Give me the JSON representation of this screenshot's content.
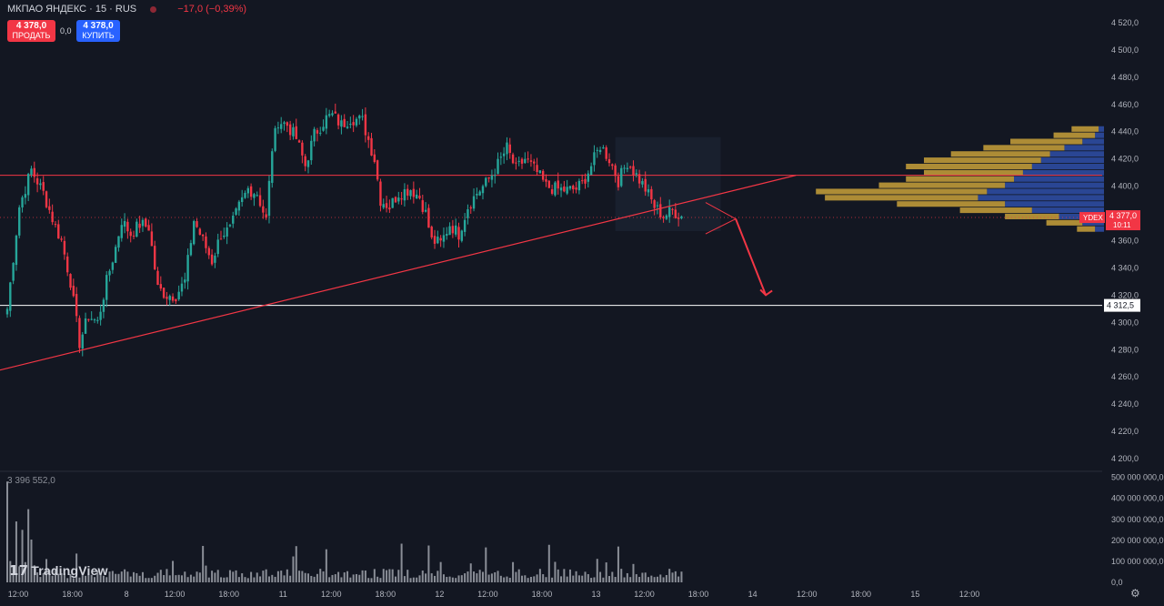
{
  "header": {
    "symbol": "МКПАО ЯНДЕКС · 15 · RUS",
    "change": "−17,0 (−0,39%)"
  },
  "trade": {
    "sell_price": "4 378,0",
    "sell_label": "ПРОДАТЬ",
    "spread": "0,0",
    "buy_price": "4 378,0",
    "buy_label": "КУПИТЬ"
  },
  "volume_label": "3 396 552,0",
  "logo_text": "TradingView",
  "colors": {
    "up": "#26a69a",
    "down": "#f23645",
    "bg": "#131722",
    "ticker": "#f23645",
    "profile_up": "#2f4fa8",
    "profile_down": "#c9a13a"
  },
  "icons": {
    "settings": "gear-icon",
    "logo": "tradingview-logo"
  },
  "chart_data": {
    "type": "candlestick",
    "price_axis": {
      "range": [
        4192,
        4530
      ],
      "ticks": [
        4200,
        4220,
        4240,
        4260,
        4280,
        4300,
        4320,
        4340,
        4360,
        4380,
        4400,
        4420,
        4440,
        4460,
        4480,
        4500,
        4520
      ],
      "tick_labels": [
        "4 200,0",
        "4 220,0",
        "4 240,0",
        "4 260,0",
        "4 280,0",
        "4 300,0",
        "4 320,0",
        "4 340,0",
        "4 360,0",
        "4 380,0",
        "4 400,0",
        "4 420,0",
        "4 440,0",
        "4 460,0",
        "4 480,0",
        "4 500,0",
        "4 520,0"
      ]
    },
    "time_axis": {
      "labels": [
        "12:00",
        "18:00",
        "8",
        "12:00",
        "18:00",
        "11",
        "12:00",
        "18:00",
        "12",
        "12:00",
        "18:00",
        "13",
        "12:00",
        "18:00",
        "14",
        "12:00",
        "18:00",
        "15",
        "12:00"
      ],
      "index": [
        0,
        18,
        36,
        52,
        70,
        88,
        104,
        122,
        140,
        156,
        174,
        192,
        208,
        226,
        244,
        262,
        280,
        298,
        316
      ]
    },
    "close_path": [
      [
        0,
        4310
      ],
      [
        4,
        4385
      ],
      [
        8,
        4412
      ],
      [
        12,
        4395
      ],
      [
        16,
        4370
      ],
      [
        18,
        4360
      ],
      [
        21,
        4330
      ],
      [
        24,
        4285
      ],
      [
        27,
        4305
      ],
      [
        30,
        4300
      ],
      [
        33,
        4330
      ],
      [
        36,
        4355
      ],
      [
        38,
        4375
      ],
      [
        41,
        4365
      ],
      [
        44,
        4372
      ],
      [
        47,
        4370
      ],
      [
        50,
        4325
      ],
      [
        53,
        4320
      ],
      [
        56,
        4320
      ],
      [
        59,
        4330
      ],
      [
        62,
        4375
      ],
      [
        65,
        4360
      ],
      [
        68,
        4345
      ],
      [
        71,
        4365
      ],
      [
        74,
        4368
      ],
      [
        77,
        4385
      ],
      [
        80,
        4398
      ],
      [
        83,
        4395
      ],
      [
        86,
        4375
      ],
      [
        88,
        4428
      ],
      [
        90,
        4448
      ],
      [
        93,
        4445
      ],
      [
        96,
        4435
      ],
      [
        99,
        4415
      ],
      [
        102,
        4438
      ],
      [
        106,
        4450
      ],
      [
        108,
        4452
      ],
      [
        111,
        4445
      ],
      [
        114,
        4450
      ],
      [
        118,
        4448
      ],
      [
        122,
        4420
      ],
      [
        124,
        4390
      ],
      [
        127,
        4385
      ],
      [
        130,
        4395
      ],
      [
        134,
        4398
      ],
      [
        137,
        4392
      ],
      [
        139,
        4380
      ],
      [
        141,
        4360
      ],
      [
        144,
        4358
      ],
      [
        147,
        4372
      ],
      [
        150,
        4365
      ],
      [
        153,
        4385
      ],
      [
        156,
        4395
      ],
      [
        159,
        4402
      ],
      [
        162,
        4412
      ],
      [
        166,
        4428
      ],
      [
        169,
        4412
      ],
      [
        172,
        4420
      ],
      [
        176,
        4410
      ],
      [
        179,
        4400
      ],
      [
        182,
        4398
      ],
      [
        186,
        4397
      ],
      [
        189,
        4398
      ],
      [
        191,
        4402
      ],
      [
        194,
        4415
      ],
      [
        197,
        4430
      ],
      [
        200,
        4420
      ],
      [
        203,
        4404
      ],
      [
        206,
        4418
      ],
      [
        209,
        4408
      ],
      [
        212,
        4398
      ],
      [
        215,
        4385
      ],
      [
        218,
        4378
      ],
      [
        221,
        4382
      ],
      [
        224,
        4378
      ]
    ],
    "volume": {
      "label": "3 396 552,0",
      "axis_range": [
        0,
        520000000
      ],
      "ticks": [
        0,
        100000000,
        200000000,
        300000000,
        400000000,
        500000000
      ],
      "tick_labels": [
        "0,0",
        "100 000 000,0",
        "200 000 000,0",
        "300 000 000,0",
        "400 000 000,0",
        "500 000 000,0"
      ]
    },
    "levels": [
      {
        "price": 4408,
        "color": "#f23645",
        "name": "resistance"
      },
      {
        "price": 4312.5,
        "color": "#ffffff",
        "name": "support",
        "label": "4 312,5"
      }
    ],
    "trendline": {
      "from": [
        0,
        4265
      ],
      "to": [
        262,
        4408
      ],
      "color": "#f23645"
    },
    "wedge": [
      [
        232,
        4365
      ],
      [
        242,
        4376
      ],
      [
        232,
        4388
      ]
    ],
    "arrow": {
      "from": [
        242,
        4376
      ],
      "to": [
        252,
        4320
      ],
      "color": "#f23645"
    },
    "box": {
      "from": [
        202,
        4436
      ],
      "to": [
        237,
        4367
      ]
    },
    "current_price": {
      "ticker": "YDEX",
      "price": "4 377,0",
      "timer": "10:11",
      "value": 4377
    },
    "volume_profile": {
      "price_range": [
        4366,
        4444
      ],
      "rows": [
        {
          "up": 0.03,
          "down": 0.15
        },
        {
          "up": 0.05,
          "down": 0.23
        },
        {
          "up": 0.12,
          "down": 0.4
        },
        {
          "up": 0.22,
          "down": 0.45
        },
        {
          "up": 0.3,
          "down": 0.55
        },
        {
          "up": 0.35,
          "down": 0.65
        },
        {
          "up": 0.4,
          "down": 0.7
        },
        {
          "up": 0.45,
          "down": 0.55
        },
        {
          "up": 0.5,
          "down": 0.6
        },
        {
          "up": 0.55,
          "down": 0.7
        },
        {
          "up": 0.65,
          "down": 0.95
        },
        {
          "up": 0.7,
          "down": 0.85
        },
        {
          "up": 0.55,
          "down": 0.6
        },
        {
          "up": 0.4,
          "down": 0.4
        },
        {
          "up": 0.25,
          "down": 0.3
        },
        {
          "up": 0.12,
          "down": 0.2
        },
        {
          "up": 0.05,
          "down": 0.1
        }
      ]
    }
  }
}
